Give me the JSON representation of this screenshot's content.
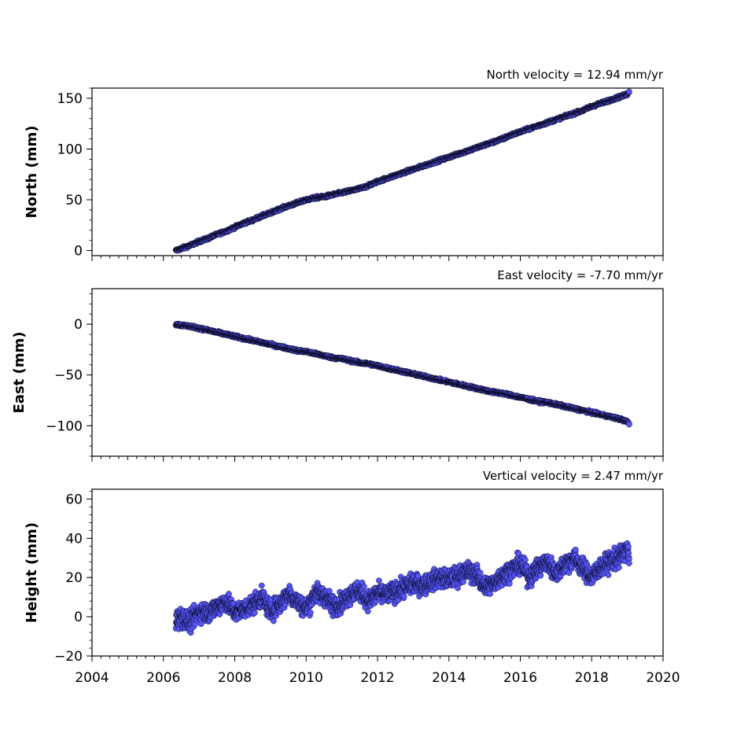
{
  "chart_data": [
    {
      "type": "scatter",
      "title": "North velocity = 12.94 mm/yr",
      "xlabel": "",
      "ylabel": "North (mm)",
      "xlim": [
        2004,
        2020
      ],
      "ylim": [
        -5,
        160
      ],
      "yticks": [
        0,
        50,
        100,
        150
      ],
      "yticklabels": [
        "0",
        "50",
        "100",
        "150"
      ],
      "grid": false,
      "marker_color": "#5555ff",
      "marker_edge": "#000000",
      "series": [
        {
          "x": [
            2006.35,
            2006.5,
            2006.75,
            2007.0,
            2007.25,
            2007.5,
            2007.75,
            2008.0,
            2008.25,
            2008.5,
            2008.75,
            2009.0,
            2009.25,
            2009.5,
            2009.75,
            2010.0,
            2010.25,
            2010.5,
            2010.75,
            2011.0,
            2011.25,
            2011.5,
            2011.75,
            2012.0,
            2012.25,
            2012.5,
            2012.75,
            2013.0,
            2013.25,
            2013.5,
            2013.75,
            2014.0,
            2014.25,
            2014.5,
            2014.75,
            2015.0,
            2015.25,
            2015.5,
            2015.75,
            2016.0,
            2016.25,
            2016.5,
            2016.75,
            2017.0,
            2017.25,
            2017.5,
            2017.75,
            2018.0,
            2018.25,
            2018.5,
            2018.75,
            2019.0,
            2019.05
          ],
          "y": [
            0,
            2,
            5,
            9,
            12,
            16,
            19,
            23,
            27,
            30,
            34,
            37,
            41,
            44,
            47,
            50,
            52,
            53,
            55,
            57,
            59,
            61,
            64,
            68,
            71,
            74,
            77,
            80,
            83,
            86,
            89,
            92,
            95,
            98,
            101,
            104,
            107,
            110,
            114,
            117,
            120,
            123,
            126,
            129,
            132,
            135,
            138,
            142,
            145,
            148,
            151,
            154,
            157
          ]
        }
      ]
    },
    {
      "type": "scatter",
      "title": "East velocity = -7.70 mm/yr",
      "xlabel": "",
      "ylabel": "East (mm)",
      "xlim": [
        2004,
        2020
      ],
      "ylim": [
        -130,
        35
      ],
      "yticks": [
        0,
        -50,
        -100
      ],
      "yticklabels": [
        "0",
        "−50",
        "−100"
      ],
      "grid": false,
      "marker_color": "#5555ff",
      "marker_edge": "#000000",
      "series": [
        {
          "x": [
            2006.35,
            2006.5,
            2006.75,
            2007.0,
            2007.25,
            2007.5,
            2007.75,
            2008.0,
            2008.25,
            2008.5,
            2008.75,
            2009.0,
            2009.25,
            2009.5,
            2009.75,
            2010.0,
            2010.25,
            2010.5,
            2010.75,
            2011.0,
            2011.25,
            2011.5,
            2011.75,
            2012.0,
            2012.25,
            2012.5,
            2012.75,
            2013.0,
            2013.25,
            2013.5,
            2013.75,
            2014.0,
            2014.25,
            2014.5,
            2014.75,
            2015.0,
            2015.25,
            2015.5,
            2015.75,
            2016.0,
            2016.25,
            2016.5,
            2016.75,
            2017.0,
            2017.25,
            2017.5,
            2017.75,
            2018.0,
            2018.25,
            2018.5,
            2018.75,
            2019.0,
            2019.05
          ],
          "y": [
            0,
            -1,
            -2,
            -4,
            -6,
            -8,
            -10,
            -12,
            -14,
            -16,
            -18,
            -20,
            -22,
            -24,
            -26,
            -27,
            -29,
            -31,
            -33,
            -34,
            -36,
            -38,
            -39,
            -41,
            -43,
            -45,
            -47,
            -49,
            -51,
            -53,
            -55,
            -57,
            -59,
            -61,
            -63,
            -65,
            -67,
            -68,
            -70,
            -72,
            -74,
            -76,
            -77,
            -79,
            -81,
            -83,
            -85,
            -87,
            -89,
            -91,
            -93,
            -96,
            -98
          ]
        }
      ]
    },
    {
      "type": "scatter",
      "title": "Vertical velocity = 2.47 mm/yr",
      "xlabel": "",
      "ylabel": "Height (mm)",
      "xlim": [
        2004,
        2020
      ],
      "ylim": [
        -20,
        65
      ],
      "yticks": [
        -20,
        0,
        20,
        40,
        60
      ],
      "yticklabels": [
        "−20",
        "0",
        "20",
        "40",
        "60"
      ],
      "xticks": [
        2004,
        2006,
        2008,
        2010,
        2012,
        2014,
        2016,
        2018,
        2020
      ],
      "xticklabels": [
        "2004",
        "2006",
        "2008",
        "2010",
        "2012",
        "2014",
        "2016",
        "2018",
        "2020"
      ],
      "grid": false,
      "marker_color": "#5555ff",
      "marker_edge": "#000000",
      "series": [
        {
          "x": [
            2006.35,
            2006.5,
            2006.75,
            2007.0,
            2007.25,
            2007.5,
            2007.75,
            2008.0,
            2008.25,
            2008.5,
            2008.75,
            2009.0,
            2009.25,
            2009.5,
            2009.75,
            2010.0,
            2010.25,
            2010.5,
            2010.75,
            2011.0,
            2011.25,
            2011.5,
            2011.75,
            2012.0,
            2012.25,
            2012.5,
            2012.75,
            2013.0,
            2013.25,
            2013.5,
            2013.75,
            2014.0,
            2014.25,
            2014.5,
            2014.75,
            2015.0,
            2015.25,
            2015.5,
            2015.75,
            2016.0,
            2016.25,
            2016.5,
            2016.75,
            2017.0,
            2017.25,
            2017.5,
            2017.75,
            2018.0,
            2018.25,
            2018.5,
            2018.75,
            2019.0,
            2019.05
          ],
          "y": [
            -2,
            0,
            -3,
            3,
            2,
            5,
            8,
            2,
            4,
            6,
            10,
            3,
            6,
            12,
            8,
            4,
            12,
            11,
            6,
            7,
            12,
            13,
            8,
            12,
            11,
            13,
            15,
            17,
            16,
            18,
            20,
            19,
            21,
            23,
            22,
            15,
            17,
            21,
            24,
            27,
            20,
            25,
            28,
            22,
            27,
            30,
            25,
            20,
            25,
            28,
            30,
            35,
            29
          ]
        }
      ]
    }
  ]
}
